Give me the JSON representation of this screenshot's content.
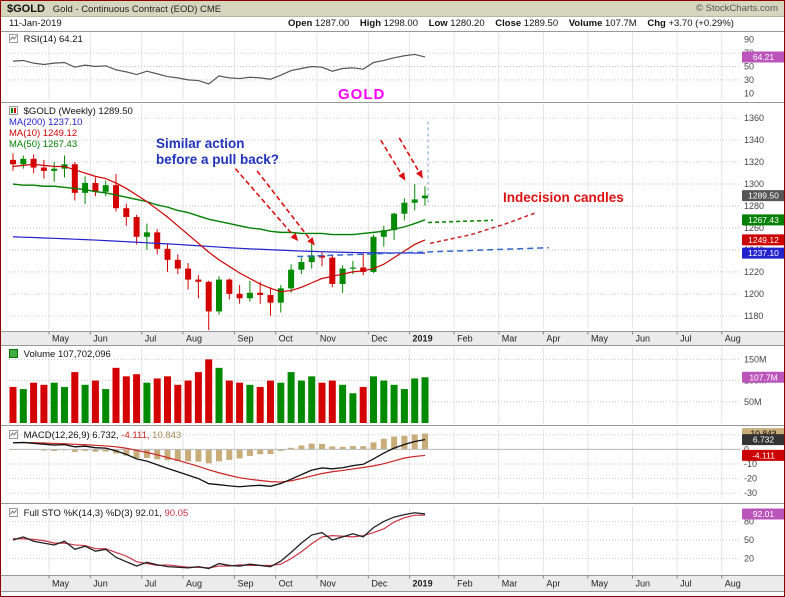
{
  "header": {
    "symbol": "$GOLD",
    "title": "Gold - Continuous Contract (EOD) CME",
    "copyright": "© StockCharts.com",
    "date": "11-Jan-2019",
    "quote": {
      "open_label": "Open",
      "open": "1287.00",
      "high_label": "High",
      "high": "1298.00",
      "low_label": "Low",
      "low": "1280.20",
      "close_label": "Close",
      "close": "1289.50",
      "volume_label": "Volume",
      "volume": "107.7M",
      "chg_label": "Chg",
      "chg": "+3.70 (+0.29%)"
    }
  },
  "legends": {
    "rsi": "RSI(14) 64.21",
    "price_title": "$GOLD (Weekly) 1289.50",
    "ma200": "MA(200) 1237.10",
    "ma10": "MA(10) 1249.12",
    "ma50": "MA(50) 1267.43",
    "volume": "Volume 107,702,096",
    "macd_title": "MACD(12,26,9)",
    "macd_v1": "6.732,",
    "macd_v2": "-4.111,",
    "macd_v3": "10.843",
    "sto_title": "Full STO %K(14,3) %D(3)",
    "sto_v1": "92.01,",
    "sto_v2": "90.05"
  },
  "annotations": {
    "gold": "GOLD",
    "similar_1": "Similar action",
    "similar_2": "before a pull back?",
    "indecision": "Indecision candles"
  },
  "colors": {
    "up": "#008a00",
    "down": "#d40000",
    "ma10": "#cc0000",
    "ma50": "#008000",
    "ma200": "#2222cc",
    "rsi": "#555555",
    "macd": "#111111",
    "signal": "#cc2222",
    "hist": "#c8ad7a",
    "hist_text": "#a08a50",
    "sto_k": "#222222",
    "sto_d": "#cc3344",
    "annotation_red": "#dd1111",
    "annotation_blue": "#2233bb",
    "annotation_magenta": "#ff00ff",
    "proj_blue": "#3366cc",
    "proj_green": "#008000",
    "proj_red": "#cc2222",
    "vline": "#7aa0cc",
    "label_pink": "#bb55bb",
    "grid": "#e4e4e4",
    "axis_text": "#444444"
  },
  "chart_data": {
    "type": "candlestick",
    "symbol": "$GOLD",
    "timeframe": "Weekly",
    "title": "$GOLD (Weekly) 1289.50",
    "months": [
      "May",
      "Jun",
      "Jul",
      "Aug",
      "Sep",
      "Oct",
      "Nov",
      "Dec",
      "2019",
      "Feb",
      "Mar",
      "Apr",
      "May",
      "Jun",
      "Jul",
      "Aug"
    ],
    "month_start_week_index": [
      4,
      8,
      13,
      17,
      22,
      26,
      30,
      35,
      39
    ],
    "weeks": {
      "open": [
        1322,
        1318,
        1323,
        1315,
        1312,
        1314,
        1318,
        1292,
        1301,
        1293,
        1299,
        1278,
        1270,
        1252,
        1256,
        1241,
        1231,
        1223,
        1213,
        1211,
        1184,
        1213,
        1200,
        1196,
        1201,
        1199,
        1192,
        1205,
        1222,
        1229,
        1235,
        1233,
        1209,
        1223,
        1224,
        1220,
        1252,
        1258,
        1273,
        1283,
        1287
      ],
      "high": [
        1328,
        1326,
        1327,
        1322,
        1320,
        1326,
        1320,
        1307,
        1306,
        1303,
        1309,
        1282,
        1272,
        1264,
        1259,
        1245,
        1236,
        1228,
        1217,
        1212,
        1216,
        1214,
        1208,
        1212,
        1211,
        1206,
        1208,
        1227,
        1233,
        1246,
        1238,
        1236,
        1226,
        1230,
        1237,
        1254,
        1262,
        1274,
        1287,
        1300,
        1298
      ],
      "low": [
        1312,
        1314,
        1310,
        1305,
        1302,
        1306,
        1285,
        1282,
        1289,
        1289,
        1275,
        1262,
        1245,
        1240,
        1236,
        1220,
        1218,
        1204,
        1196,
        1167,
        1181,
        1195,
        1191,
        1193,
        1191,
        1180,
        1183,
        1201,
        1218,
        1223,
        1225,
        1206,
        1201,
        1218,
        1217,
        1219,
        1243,
        1249,
        1267,
        1276,
        1280.2
      ],
      "close": [
        1318,
        1323,
        1315,
        1312,
        1314,
        1318,
        1292,
        1301,
        1293,
        1299,
        1278,
        1270,
        1252,
        1256,
        1241,
        1231,
        1223,
        1213,
        1211,
        1184,
        1213,
        1200,
        1196,
        1201,
        1199,
        1192,
        1205,
        1222,
        1229,
        1235,
        1233,
        1209,
        1223,
        1224,
        1220,
        1252,
        1258,
        1273,
        1283,
        1286,
        1289.5
      ],
      "volume_m": [
        85,
        80,
        95,
        90,
        95,
        85,
        120,
        90,
        100,
        80,
        130,
        110,
        115,
        95,
        105,
        110,
        90,
        100,
        120,
        150,
        130,
        100,
        95,
        90,
        85,
        100,
        95,
        120,
        100,
        110,
        95,
        100,
        90,
        70,
        85,
        110,
        100,
        90,
        80,
        105,
        107.7
      ]
    },
    "overlays": {
      "ma10": [
        1316,
        1317,
        1318,
        1317,
        1316,
        1316,
        1313,
        1310,
        1307,
        1305,
        1301,
        1296,
        1290,
        1284,
        1277,
        1270,
        1262,
        1254,
        1246,
        1238,
        1231,
        1225,
        1219,
        1214,
        1209,
        1205,
        1202,
        1203,
        1206,
        1210,
        1214,
        1216,
        1218,
        1220,
        1221,
        1223,
        1227,
        1233,
        1239,
        1245,
        1249.12
      ],
      "ma50": [
        1300,
        1299,
        1299,
        1298,
        1298,
        1297,
        1296,
        1295,
        1293,
        1292,
        1290,
        1288,
        1286,
        1284,
        1281,
        1279,
        1276,
        1274,
        1271,
        1268,
        1266,
        1264,
        1262,
        1260,
        1259,
        1257,
        1256,
        1256,
        1255,
        1255,
        1255,
        1254,
        1254,
        1254,
        1255,
        1256,
        1257,
        1259,
        1261,
        1264,
        1267.43
      ],
      "ma200": [
        1252,
        1251.6,
        1251.3,
        1250.9,
        1250.6,
        1250.2,
        1249.8,
        1249.4,
        1249,
        1248.5,
        1248,
        1247.5,
        1247,
        1246.5,
        1246,
        1245.5,
        1245,
        1244.4,
        1243.8,
        1243.2,
        1242.6,
        1242,
        1241.5,
        1241,
        1240.6,
        1240.2,
        1239.8,
        1239.4,
        1239,
        1238.7,
        1238.4,
        1238.1,
        1237.9,
        1237.7,
        1237.5,
        1237.4,
        1237.3,
        1237.25,
        1237.2,
        1237.15,
        1237.1
      ]
    },
    "rsi": {
      "values": [
        58,
        59,
        55,
        53,
        55,
        56,
        49,
        52,
        50,
        51,
        45,
        42,
        38,
        43,
        39,
        35,
        33,
        30,
        29,
        24,
        36,
        33,
        32,
        34,
        33,
        31,
        37,
        44,
        47,
        50,
        49,
        43,
        47,
        48,
        46,
        56,
        59,
        63,
        66,
        68,
        64.21
      ],
      "last": 64.21,
      "gridlines": [
        70,
        50,
        30
      ],
      "ticks": [
        90,
        70,
        50,
        30,
        10
      ]
    },
    "macd": {
      "macd": [
        4.5,
        4.8,
        4.2,
        3.6,
        3.0,
        3.3,
        1.8,
        2.2,
        1.2,
        0.9,
        -1.0,
        -3.4,
        -6.5,
        -8.0,
        -10.5,
        -13.0,
        -15.3,
        -17.6,
        -20.0,
        -23.5,
        -24.2,
        -25.0,
        -25.6,
        -25.0,
        -24.6,
        -25.3,
        -23.4,
        -20.4,
        -17.3,
        -14.2,
        -12.7,
        -13.3,
        -12.6,
        -11.1,
        -10.2,
        -6.5,
        -2.5,
        0.9,
        3.4,
        5.4,
        6.732
      ],
      "signal": [
        4.6,
        4.7,
        4.6,
        4.4,
        4.1,
        3.9,
        3.5,
        3.2,
        2.8,
        2.4,
        1.8,
        0.8,
        -0.6,
        -2.1,
        -3.7,
        -5.6,
        -7.5,
        -9.5,
        -11.6,
        -14.0,
        -16.0,
        -17.8,
        -19.4,
        -20.5,
        -21.3,
        -22.1,
        -22.4,
        -21.5,
        -20.0,
        -18.2,
        -16.5,
        -15.3,
        -14.4,
        -13.4,
        -12.4,
        -11.3,
        -9.8,
        -7.9,
        -5.9,
        -4.8,
        -4.111
      ],
      "last_macd": 6.732,
      "last_signal": -4.111,
      "last_hist": 10.843,
      "ticks": [
        10,
        0,
        -10,
        -20,
        -30
      ]
    },
    "sto": {
      "k": [
        50,
        55,
        48,
        45,
        42,
        48,
        35,
        40,
        32,
        35,
        22,
        15,
        8,
        14,
        10,
        7,
        6,
        5,
        7,
        4,
        12,
        9,
        8,
        11,
        9,
        7,
        16,
        30,
        45,
        58,
        62,
        50,
        55,
        60,
        55,
        70,
        80,
        87,
        91,
        94,
        92.01
      ],
      "d": [
        52,
        52,
        51,
        49,
        45,
        45,
        42,
        41,
        36,
        36,
        30,
        24,
        15,
        12,
        9,
        10,
        8,
        6,
        6,
        5,
        8,
        8,
        10,
        9,
        9,
        9,
        11,
        20,
        31,
        44,
        55,
        57,
        56,
        55,
        57,
        62,
        68,
        79,
        86,
        90,
        90.05
      ],
      "last_k": 92.01,
      "last_d": 90.05,
      "gridlines": [
        80,
        50,
        20
      ],
      "ticks": [
        80,
        50,
        20
      ]
    },
    "price_axis": {
      "ticks": [
        1360,
        1340,
        1320,
        1300,
        1280,
        1260,
        1240,
        1220,
        1200,
        1180
      ]
    },
    "volume_axis": {
      "ticks": [
        {
          "t": "150M",
          "v": 150
        },
        {
          "t": "100M",
          "v": 100
        },
        {
          "t": "50M",
          "v": 50
        }
      ]
    },
    "value_labels": [
      {
        "panel": "rsi",
        "value": 64.21,
        "text": "64.21",
        "bg": "#bb55bb",
        "fg": "#ffffff"
      },
      {
        "panel": "price",
        "value": 1289.5,
        "text": "1289.50",
        "bg": "#555555",
        "fg": "#ffffff"
      },
      {
        "panel": "price",
        "value": 1267.43,
        "text": "1267.43",
        "bg": "#008000",
        "fg": "#ffffff"
      },
      {
        "panel": "price",
        "value": 1249.12,
        "text": "1249.12",
        "bg": "#cc0000",
        "fg": "#ffffff"
      },
      {
        "panel": "price",
        "value": 1237.1,
        "text": "1237.10",
        "bg": "#2222cc",
        "fg": "#ffffff"
      },
      {
        "panel": "vol",
        "value": 107.7,
        "text": "107.7M",
        "bg": "#bb55bb",
        "fg": "#ffffff"
      },
      {
        "panel": "macd",
        "value": 10.843,
        "text": "10.843",
        "bg": "#c8ad7a",
        "fg": "#000000"
      },
      {
        "panel": "macd",
        "value": 6.732,
        "text": "6.732",
        "bg": "#333333",
        "fg": "#ffffff"
      },
      {
        "panel": "macd",
        "value": -4.111,
        "text": "-4.111",
        "bg": "#cc0000",
        "fg": "#ffffff"
      },
      {
        "panel": "sto",
        "value": 92.01,
        "text": "92.01",
        "bg": "#bb55bb",
        "fg": "#ffffff"
      }
    ],
    "annotations": {
      "arrows": [
        {
          "x1w": 21.6,
          "p1": 1314,
          "x2w": 27.7,
          "p2": 1248
        },
        {
          "x1w": 23.7,
          "p1": 1312,
          "x2w": 29.3,
          "p2": 1244
        },
        {
          "x1w": 35.7,
          "p1": 1340,
          "x2w": 38.1,
          "p2": 1303
        },
        {
          "x1w": 37.5,
          "p1": 1342,
          "x2w": 39.8,
          "p2": 1305
        }
      ],
      "blue_line": {
        "x1w": 27.6,
        "p1": 1234,
        "x2w": 52.0,
        "p2": 1242
      },
      "green_line": {
        "x1w": 40.3,
        "p1": 1265,
        "x2w": 46.6,
        "p2": 1267
      },
      "red_line": [
        [
          40.5,
          1246
        ],
        [
          44.5,
          1254
        ],
        [
          47.9,
          1264
        ],
        [
          50.8,
          1274
        ]
      ],
      "current_vline": {
        "xw": 40.3,
        "p1": 1357,
        "p2": 1280
      }
    }
  }
}
